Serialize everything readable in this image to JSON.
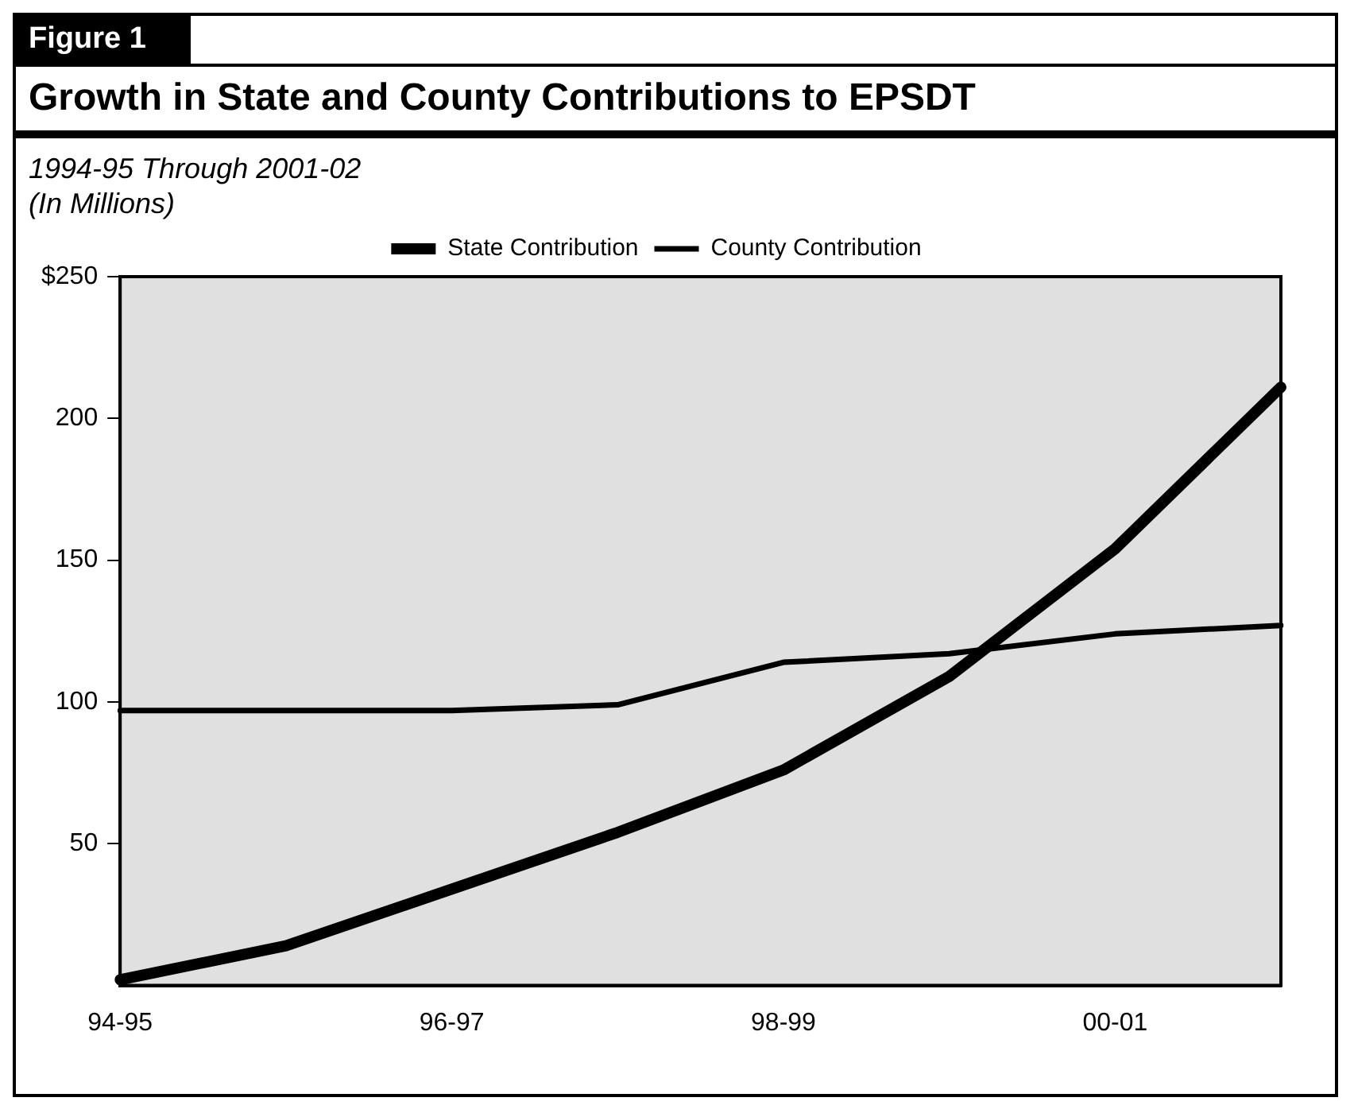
{
  "chart_data": {
    "type": "line",
    "title": "Growth in State and County Contributions to EPSDT",
    "subtitle": "1994-95 Through 2001-02",
    "ylabel": "(In Millions)",
    "annotations": [
      "Figure 1"
    ],
    "categories": [
      "94-95",
      null,
      "96-97",
      null,
      "98-99",
      null,
      "00-01",
      null
    ],
    "series": [
      {
        "name": "State Contribution",
        "color": "#000000",
        "values": [
          2,
          14,
          34,
          54,
          76,
          109,
          154,
          211
        ]
      },
      {
        "name": "County Contribution",
        "color": "#000000",
        "values": [
          97,
          97,
          97,
          99,
          114,
          117,
          124,
          127
        ]
      }
    ],
    "ylim": [
      0,
      250
    ],
    "yticks": [
      50,
      100,
      150,
      200,
      {
        "value": 250,
        "label": "$250"
      }
    ],
    "grid": false,
    "legend": "top right",
    "marker": "none",
    "line_style": "solid"
  }
}
